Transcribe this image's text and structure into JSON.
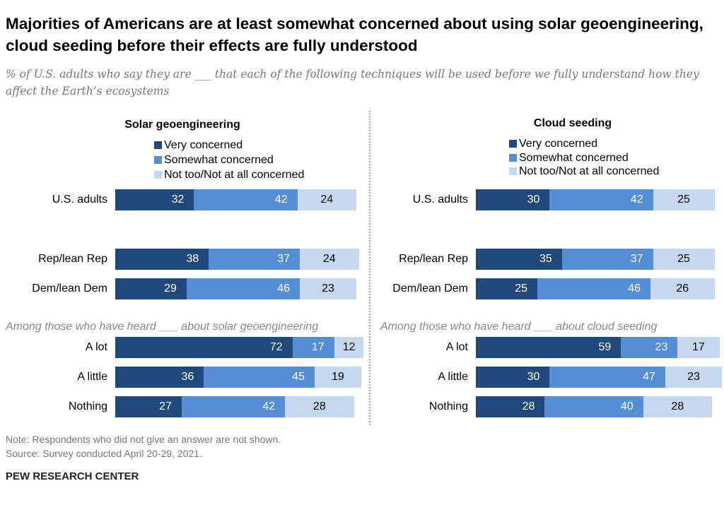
{
  "title": "Majorities of Americans are at least somewhat concerned about using solar geoengineering, cloud seeding before their effects are fully understood",
  "subtitle": "% of U.S. adults who say they are ___ that each of the following techniques will be used before we fully understand how they affect the Earth’s ecosystems",
  "colors": {
    "very": "#21487A",
    "somewhat": "#558ED5",
    "not": "#C5D8EF"
  },
  "chart_data": [
    {
      "type": "bar",
      "stacked": true,
      "orientation": "horizontal",
      "title": "Solar geoengineering",
      "legend": [
        "Very concerned",
        "Somewhat concerned",
        "Not too/Not at all concerned"
      ],
      "group_label": "Among those who have heard ___ about solar geoengineering",
      "categories": [
        "U.S. adults",
        "Rep/lean Rep",
        "Dem/lean Dem",
        "A lot",
        "A little",
        "Nothing"
      ],
      "series": [
        {
          "name": "Very concerned",
          "values": [
            32,
            38,
            29,
            72,
            36,
            27
          ]
        },
        {
          "name": "Somewhat concerned",
          "values": [
            42,
            37,
            46,
            17,
            45,
            42
          ]
        },
        {
          "name": "Not too/Not at all concerned",
          "values": [
            24,
            24,
            23,
            12,
            19,
            28
          ]
        }
      ]
    },
    {
      "type": "bar",
      "stacked": true,
      "orientation": "horizontal",
      "title": "Cloud seeding",
      "legend": [
        "Very concerned",
        "Somewhat concerned",
        "Not too/Not at all concerned"
      ],
      "group_label": "Among those who have heard ___ about cloud seeding",
      "categories": [
        "U.S. adults",
        "Rep/lean Rep",
        "Dem/lean Dem",
        "A lot",
        "A little",
        "Nothing"
      ],
      "series": [
        {
          "name": "Very concerned",
          "values": [
            30,
            35,
            25,
            59,
            30,
            28
          ]
        },
        {
          "name": "Somewhat concerned",
          "values": [
            42,
            37,
            46,
            23,
            47,
            40
          ]
        },
        {
          "name": "Not too/Not at all concerned",
          "values": [
            25,
            25,
            26,
            17,
            23,
            28
          ]
        }
      ]
    }
  ],
  "notes": {
    "note": "Note: Respondents who did not give an answer are not shown.",
    "source": "Source: Survey conducted April 20-29, 2021.",
    "org": "PEW RESEARCH CENTER"
  }
}
